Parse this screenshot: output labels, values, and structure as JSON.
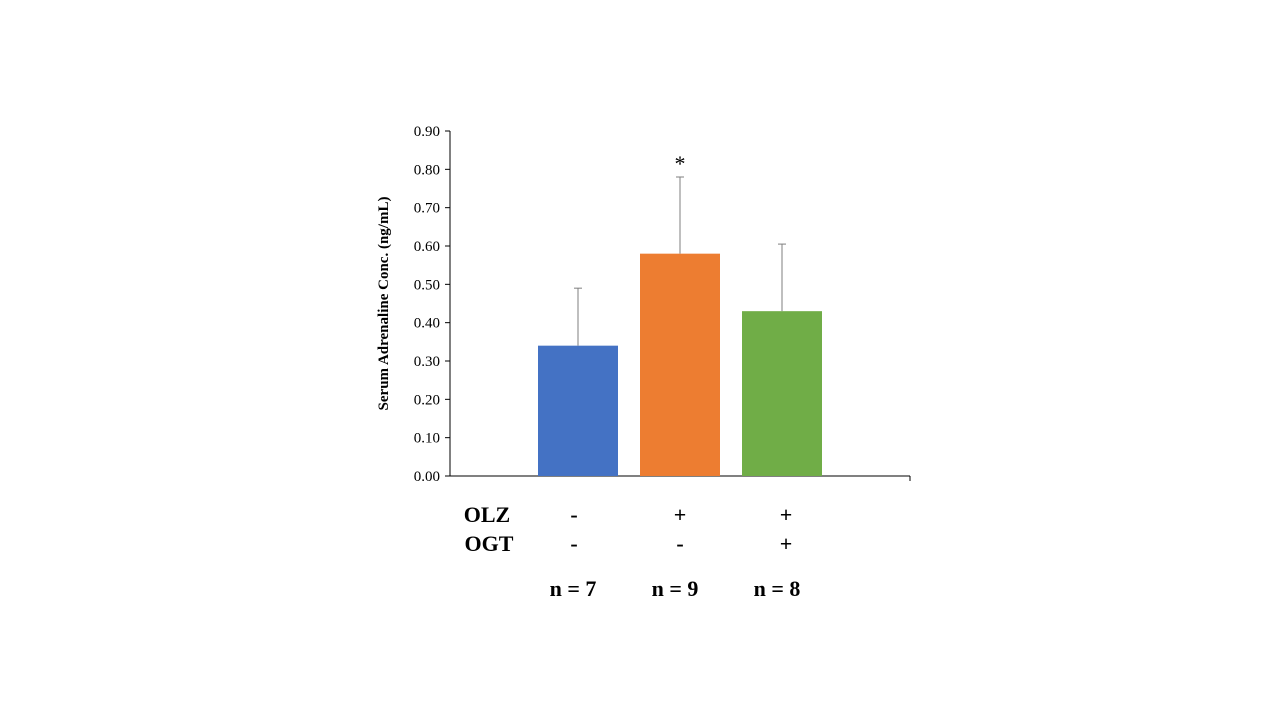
{
  "chart_data": {
    "type": "bar",
    "ylabel": "Serum Adrenaline Conc. (ng/mL)",
    "ylim": [
      0,
      0.9
    ],
    "y_ticks": [
      "0.00",
      "0.10",
      "0.20",
      "0.30",
      "0.40",
      "0.50",
      "0.60",
      "0.70",
      "0.80",
      "0.90"
    ],
    "grid": false,
    "bars": [
      {
        "value": 0.34,
        "error": 0.15,
        "color": "#4472C4",
        "significance": "",
        "n_label": "n = 7"
      },
      {
        "value": 0.58,
        "error": 0.2,
        "color": "#ED7D31",
        "significance": "*",
        "n_label": "n = 9"
      },
      {
        "value": 0.43,
        "error": 0.175,
        "color": "#70AD47",
        "significance": "",
        "n_label": "n = 8"
      }
    ],
    "treatment_rows": [
      {
        "label": "OLZ",
        "signs": [
          "-",
          "+",
          "+"
        ]
      },
      {
        "label": "OGT",
        "signs": [
          "-",
          "-",
          "+"
        ]
      }
    ]
  }
}
